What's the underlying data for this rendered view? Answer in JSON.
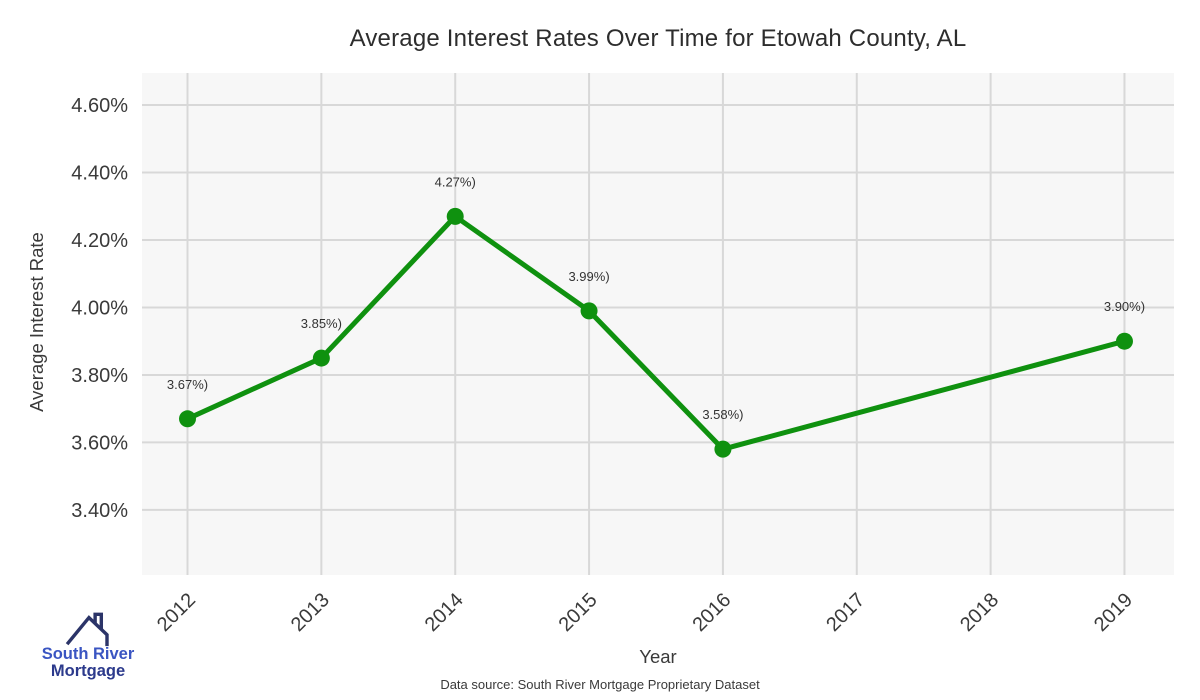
{
  "chart_data": {
    "type": "line",
    "title": "Average Interest Rates Over Time for Etowah County, AL",
    "xlabel": "Year",
    "ylabel": "Average Interest Rate",
    "x": [
      2012,
      2013,
      2014,
      2015,
      2016,
      2019
    ],
    "values": [
      3.67,
      3.85,
      4.27,
      3.99,
      3.58,
      3.9
    ],
    "point_labels": [
      "3.67%)",
      "3.85%)",
      "4.27%)",
      "3.99%)",
      "3.58%)",
      "3.90%)"
    ],
    "xticks": [
      2012,
      2013,
      2014,
      2015,
      2016,
      2017,
      2018,
      2019
    ],
    "yticks": [
      3.4,
      3.6,
      3.8,
      4.0,
      4.2,
      4.4,
      4.6
    ],
    "ytick_labels": [
      "3.40%",
      "3.60%",
      "3.80%",
      "4.00%",
      "4.20%",
      "4.40%",
      "4.60%"
    ],
    "xlim": [
      2011.66,
      2019.37
    ],
    "ylim": [
      3.207,
      4.695
    ],
    "grid": true,
    "legend_position": "none",
    "line_color": "#0f910f",
    "panel_bg": "#f7f7f7",
    "grid_color": "#d8d8d8"
  },
  "footer": {
    "source": "Data source: South River Mortgage Proprietary Dataset"
  },
  "logo": {
    "line1": "South River",
    "line2": "Mortgage",
    "text_color_primary": "#3a55c2",
    "text_color_secondary": "#2c3a8c",
    "roof_color": "#2b3468"
  }
}
